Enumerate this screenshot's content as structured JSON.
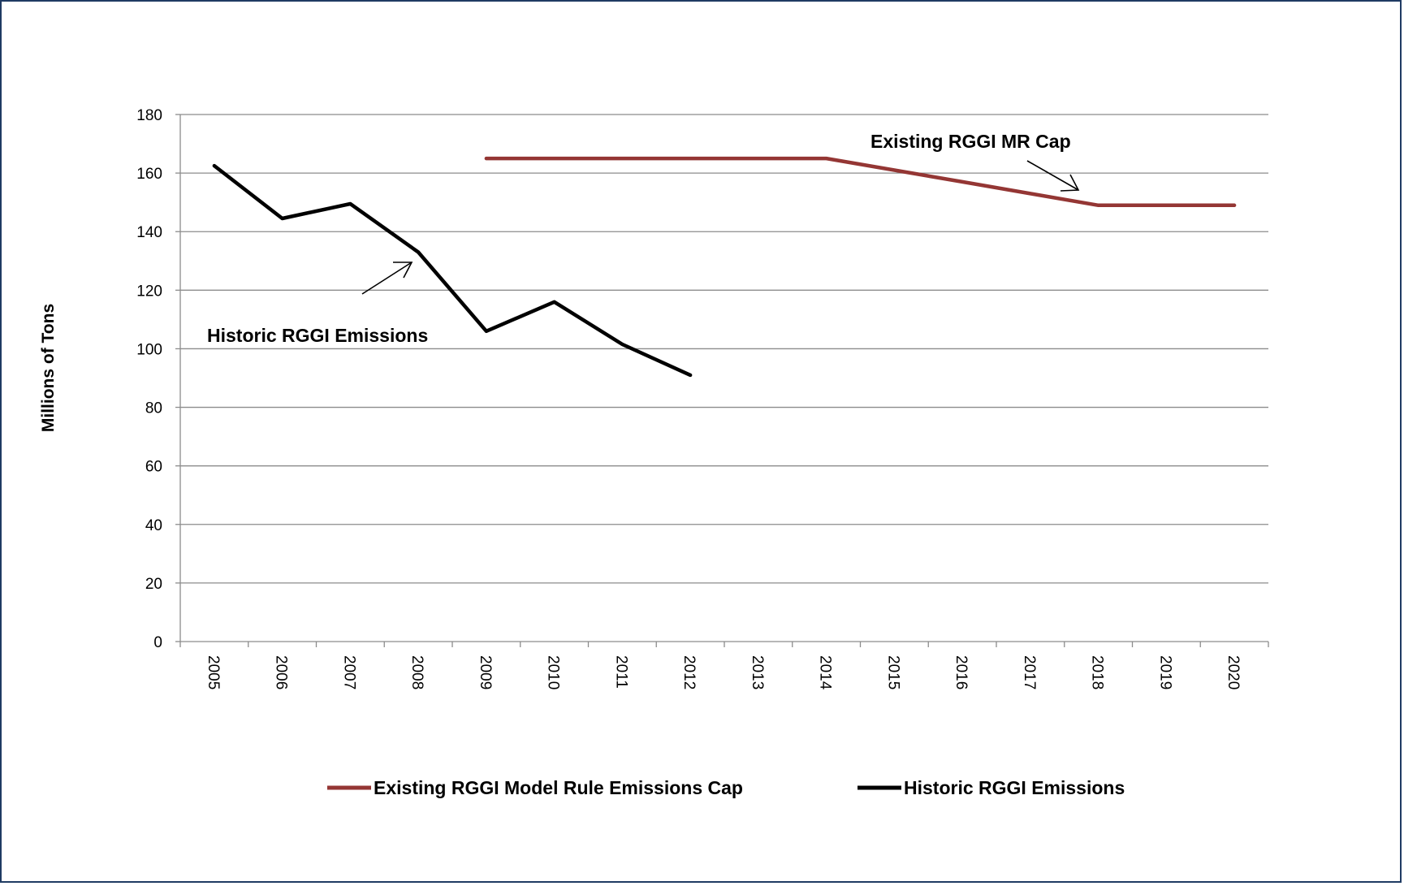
{
  "chart_data": {
    "type": "line",
    "ylabel": "Millions  of Tons",
    "xlabel": "",
    "ylim": [
      0,
      180
    ],
    "yticks": [
      0,
      20,
      40,
      60,
      80,
      100,
      120,
      140,
      160,
      180
    ],
    "categories": [
      "2005",
      "2006",
      "2007",
      "2008",
      "2009",
      "2010",
      "2011",
      "2012",
      "2013",
      "2014",
      "2015",
      "2016",
      "2017",
      "2018",
      "2019",
      "2020"
    ],
    "grid": true,
    "legend_position": "bottom",
    "series": [
      {
        "name": "Existing RGGI Model Rule Emissions Cap",
        "color": "#943634",
        "values": [
          null,
          null,
          null,
          null,
          165,
          165,
          165,
          165,
          165,
          165,
          161,
          157,
          153,
          149,
          149,
          149
        ]
      },
      {
        "name": "Historic RGGI Emissions",
        "color": "#000000",
        "values": [
          162.5,
          144.5,
          149.5,
          133,
          106,
          116,
          101.5,
          91,
          null,
          null,
          null,
          null,
          null,
          null,
          null,
          null
        ]
      }
    ],
    "annotations": [
      {
        "text": "Existing RGGI MR Cap",
        "points_to": "Existing RGGI Model Rule Emissions Cap"
      },
      {
        "text": "Historic RGGI Emissions",
        "points_to": "Historic RGGI Emissions"
      }
    ]
  }
}
